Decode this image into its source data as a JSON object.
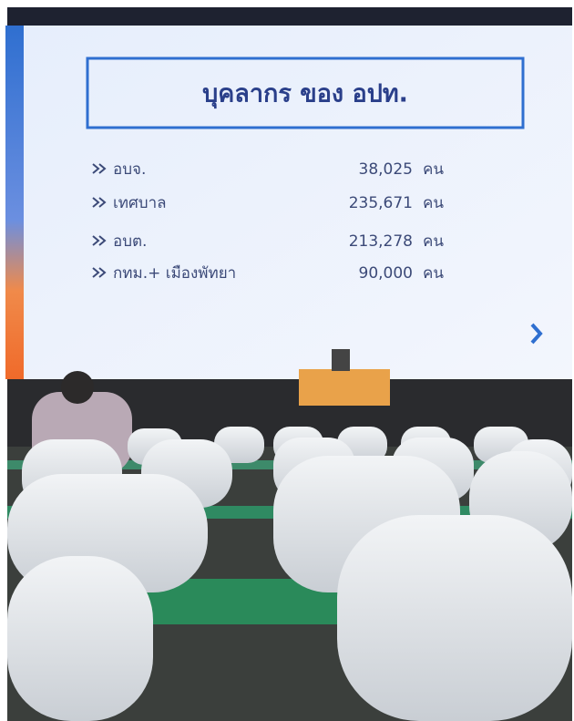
{
  "slide": {
    "title": "บุคลากร ของ อปท.",
    "rows": [
      {
        "label": "อบจ.",
        "value": "38,025",
        "unit": "คน"
      },
      {
        "label": "เทศบาล",
        "value": "235,671",
        "unit": "คน"
      },
      {
        "label": "อบต.",
        "value": "213,278",
        "unit": "คน"
      },
      {
        "label": "กทม.+ เมืองพัทยา",
        "value": "90,000",
        "unit": "คน"
      }
    ]
  }
}
